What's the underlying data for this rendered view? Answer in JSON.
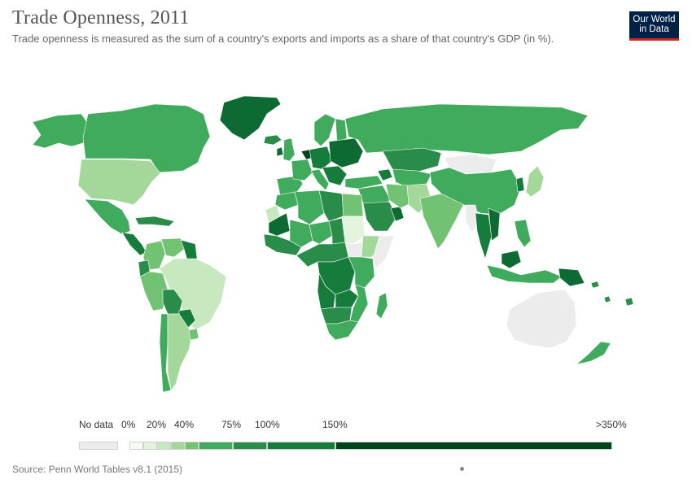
{
  "title": "Trade Openness, 2011",
  "subtitle": "Trade openness is measured as the sum of a country's exports and imports as a share of that country's GDP (in %).",
  "logo": {
    "line1": "Our World",
    "line2": "in Data"
  },
  "colors": {
    "no_data": "#ececec",
    "bins": [
      "#f5fbf3",
      "#e3f4dd",
      "#c8e9c0",
      "#a4d89a",
      "#72c274",
      "#41ab5d",
      "#2a8c49",
      "#157c3c",
      "#0d6a32",
      "#00441b"
    ]
  },
  "legend": {
    "no_data_label": "No data",
    "tick_labels": [
      "0%",
      "20%",
      "40%",
      "75%",
      "100%",
      "150%",
      ">350%"
    ]
  },
  "map": {
    "countries": [
      {
        "name": "canada",
        "bin": 5
      },
      {
        "name": "alaska",
        "bin": 5
      },
      {
        "name": "greenland",
        "bin": 8
      },
      {
        "name": "united-states",
        "bin": 3
      },
      {
        "name": "mexico",
        "bin": 5
      },
      {
        "name": "central-america",
        "bin": 7
      },
      {
        "name": "caribbean",
        "bin": 6
      },
      {
        "name": "colombia",
        "bin": 4
      },
      {
        "name": "venezuela",
        "bin": 4
      },
      {
        "name": "guianas",
        "bin": 7
      },
      {
        "name": "ecuador",
        "bin": 6
      },
      {
        "name": "peru",
        "bin": 4
      },
      {
        "name": "brazil",
        "bin": 2
      },
      {
        "name": "bolivia",
        "bin": 6
      },
      {
        "name": "paraguay",
        "bin": 7
      },
      {
        "name": "chile",
        "bin": 5
      },
      {
        "name": "argentina",
        "bin": 3
      },
      {
        "name": "uruguay",
        "bin": 4
      },
      {
        "name": "iceland",
        "bin": 6
      },
      {
        "name": "ireland",
        "bin": 8
      },
      {
        "name": "uk",
        "bin": 5
      },
      {
        "name": "iberia",
        "bin": 5
      },
      {
        "name": "france",
        "bin": 5
      },
      {
        "name": "benelux",
        "bin": 9
      },
      {
        "name": "central-europe",
        "bin": 7
      },
      {
        "name": "scandinavia",
        "bin": 5
      },
      {
        "name": "finland",
        "bin": 5
      },
      {
        "name": "italy",
        "bin": 5
      },
      {
        "name": "balkans",
        "bin": 7
      },
      {
        "name": "eastern-europe",
        "bin": 8
      },
      {
        "name": "russia",
        "bin": 5
      },
      {
        "name": "turkey",
        "bin": 5
      },
      {
        "name": "kazakhstan",
        "bin": 6
      },
      {
        "name": "central-asia",
        "bin": 5
      },
      {
        "name": "caucasus",
        "bin": 7
      },
      {
        "name": "middle-east",
        "bin": 5
      },
      {
        "name": "saudi-arabia",
        "bin": 6
      },
      {
        "name": "gulf",
        "bin": 8
      },
      {
        "name": "iran",
        "bin": 4
      },
      {
        "name": "afghanistan-pakistan",
        "bin": 3
      },
      {
        "name": "india",
        "bin": 4
      },
      {
        "name": "mongolia",
        "bin": -1
      },
      {
        "name": "china",
        "bin": 5
      },
      {
        "name": "korea",
        "bin": 7
      },
      {
        "name": "japan",
        "bin": 3
      },
      {
        "name": "myanmar",
        "bin": -1
      },
      {
        "name": "thailand",
        "bin": 7
      },
      {
        "name": "vietnam",
        "bin": 8
      },
      {
        "name": "malaysia",
        "bin": 8
      },
      {
        "name": "indonesia",
        "bin": 5
      },
      {
        "name": "philippines",
        "bin": 5
      },
      {
        "name": "new-guinea",
        "bin": 8
      },
      {
        "name": "australia",
        "bin": -1
      },
      {
        "name": "new-zealand",
        "bin": 5
      },
      {
        "name": "pacific-islands",
        "bin": 6
      },
      {
        "name": "morocco",
        "bin": 5
      },
      {
        "name": "algeria",
        "bin": 5
      },
      {
        "name": "libya",
        "bin": 6
      },
      {
        "name": "egypt",
        "bin": 4
      },
      {
        "name": "western-sahara",
        "bin": 2
      },
      {
        "name": "mauritania",
        "bin": 8
      },
      {
        "name": "west-africa",
        "bin": 5
      },
      {
        "name": "west-africa-coast",
        "bin": 6
      },
      {
        "name": "sahel",
        "bin": 5
      },
      {
        "name": "chad",
        "bin": 6
      },
      {
        "name": "sudan",
        "bin": 1
      },
      {
        "name": "south-sudan",
        "bin": -1
      },
      {
        "name": "horn-of-africa",
        "bin": 3
      },
      {
        "name": "somalia",
        "bin": -1
      },
      {
        "name": "central-africa",
        "bin": 6
      },
      {
        "name": "drc",
        "bin": 7
      },
      {
        "name": "east-africa",
        "bin": 5
      },
      {
        "name": "angola",
        "bin": 7
      },
      {
        "name": "zambia",
        "bin": 7
      },
      {
        "name": "mozambique",
        "bin": 5
      },
      {
        "name": "namibia-botswana",
        "bin": 6
      },
      {
        "name": "south-africa",
        "bin": 5
      },
      {
        "name": "madagascar",
        "bin": 5
      }
    ]
  },
  "source": "Source: Penn World Tables v8.1 (2015)"
}
